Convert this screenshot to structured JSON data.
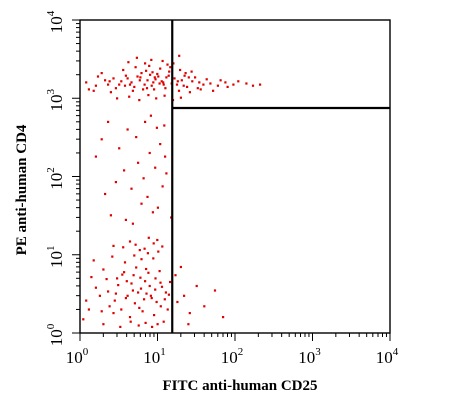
{
  "chart_data": {
    "type": "scatter",
    "title": "",
    "xlabel": "FITC anti-human CD25",
    "ylabel": "PE anti-human CD4",
    "x_scale": "log",
    "y_scale": "log",
    "xlim": [
      1,
      10000
    ],
    "ylim": [
      1,
      10000
    ],
    "x_ticks": [
      {
        "value": 1,
        "base": "10",
        "exp": "0"
      },
      {
        "value": 10,
        "base": "10",
        "exp": "1"
      },
      {
        "value": 100,
        "base": "10",
        "exp": "2"
      },
      {
        "value": 1000,
        "base": "10",
        "exp": "3"
      },
      {
        "value": 10000,
        "base": "10",
        "exp": "4"
      }
    ],
    "y_ticks": [
      {
        "value": 1,
        "base": "10",
        "exp": "0"
      },
      {
        "value": 10,
        "base": "10",
        "exp": "1"
      },
      {
        "value": 100,
        "base": "10",
        "exp": "2"
      },
      {
        "value": 1000,
        "base": "10",
        "exp": "3"
      },
      {
        "value": 10000,
        "base": "10",
        "exp": "4"
      }
    ],
    "quadrant_gates": {
      "x": 15.5,
      "y": 750
    },
    "point_color": "#e00000",
    "grid": false,
    "legend": "none",
    "series": [
      {
        "points": [
          [
            3.2,
            1500
          ],
          [
            4.1,
            1800
          ],
          [
            5.0,
            1400
          ],
          [
            6.2,
            2100
          ],
          [
            7.4,
            1700
          ],
          [
            8.8,
            1600
          ],
          [
            10.2,
            1900
          ],
          [
            12.0,
            1500
          ],
          [
            14.1,
            2200
          ],
          [
            16.5,
            1800
          ],
          [
            2.5,
            1200
          ],
          [
            3.6,
            2300
          ],
          [
            4.6,
            1600
          ],
          [
            5.5,
            1900
          ],
          [
            6.8,
            1500
          ],
          [
            8.0,
            2000
          ],
          [
            9.4,
            1750
          ],
          [
            11.3,
            1650
          ],
          [
            13.0,
            1850
          ],
          [
            15.2,
            1550
          ],
          [
            2.1,
            1700
          ],
          [
            2.9,
            1350
          ],
          [
            3.9,
            1950
          ],
          [
            4.8,
            1250
          ],
          [
            5.9,
            1700
          ],
          [
            7.1,
            2250
          ],
          [
            8.4,
            1450
          ],
          [
            9.9,
            2050
          ],
          [
            11.8,
            1600
          ],
          [
            13.9,
            1950
          ],
          [
            17.8,
            1500
          ],
          [
            20.5,
            1700
          ],
          [
            24.0,
            1400
          ],
          [
            28.0,
            1650
          ],
          [
            33.0,
            1350
          ],
          [
            39.0,
            1500
          ],
          [
            48.0,
            1550
          ],
          [
            60.0,
            1450
          ],
          [
            75.0,
            1600
          ],
          [
            95.0,
            1500
          ],
          [
            18.9,
            1250
          ],
          [
            22.3,
            1950
          ],
          [
            26.1,
            1200
          ],
          [
            30.5,
            1850
          ],
          [
            36.0,
            1300
          ],
          [
            43.0,
            1750
          ],
          [
            52.0,
            1250
          ],
          [
            65.0,
            1700
          ],
          [
            80.0,
            1400
          ],
          [
            110.0,
            1650
          ],
          [
            1.3,
            1300
          ],
          [
            1.7,
            1900
          ],
          [
            1.2,
            1600
          ],
          [
            1.5,
            1250
          ],
          [
            1.9,
            2100
          ],
          [
            2.3,
            1500
          ],
          [
            2.7,
            1800
          ],
          [
            3.4,
            1650
          ],
          [
            4.4,
            1500
          ],
          [
            5.2,
            2500
          ],
          [
            6.5,
            1300
          ],
          [
            7.8,
            2600
          ],
          [
            9.0,
            1300
          ],
          [
            10.8,
            2400
          ],
          [
            12.6,
            1350
          ],
          [
            14.6,
            2500
          ],
          [
            16.0,
            2800
          ],
          [
            19.5,
            2300
          ],
          [
            23.0,
            2100
          ],
          [
            27.5,
            2200
          ],
          [
            3.0,
            1000
          ],
          [
            4.3,
            1050
          ],
          [
            5.8,
            950
          ],
          [
            7.6,
            1100
          ],
          [
            9.6,
            1000
          ],
          [
            12.3,
            1080
          ],
          [
            15.8,
            950
          ],
          [
            20.0,
            1020
          ],
          [
            140.0,
            1550
          ],
          [
            210.0,
            1500
          ],
          [
            170.0,
            1450
          ],
          [
            8.3,
            3100
          ],
          [
            5.4,
            3300
          ],
          [
            11.6,
            3000
          ],
          [
            4.2,
            2900
          ],
          [
            6.9,
            2800
          ],
          [
            13.4,
            2700
          ],
          [
            19.0,
            3500
          ],
          [
            9.2,
            1850
          ],
          [
            10.6,
            1550
          ],
          [
            3.8,
            1450
          ],
          [
            2.4,
            1650
          ],
          [
            6.0,
            1850
          ],
          [
            7.3,
            1350
          ],
          [
            8.6,
            2150
          ],
          [
            1.6,
            1450
          ],
          [
            18.2,
            1650
          ],
          [
            21.7,
            1450
          ],
          [
            25.3,
            1850
          ],
          [
            34.5,
            1600
          ],
          [
            1.8,
            3.0
          ],
          [
            2.4,
            2.2
          ],
          [
            3.1,
            4.1
          ],
          [
            3.9,
            2.8
          ],
          [
            4.8,
            3.5
          ],
          [
            5.8,
            2.1
          ],
          [
            6.9,
            4.6
          ],
          [
            8.2,
            3.0
          ],
          [
            9.7,
            2.5
          ],
          [
            11.4,
            3.9
          ],
          [
            1.4,
            5.2
          ],
          [
            2.0,
            6.5
          ],
          [
            2.7,
            1.8
          ],
          [
            3.5,
            5.6
          ],
          [
            4.4,
            1.6
          ],
          [
            5.3,
            6.9
          ],
          [
            6.4,
            1.9
          ],
          [
            7.6,
            5.9
          ],
          [
            9.0,
            1.7
          ],
          [
            10.6,
            6.2
          ],
          [
            1.2,
            2.6
          ],
          [
            1.6,
            3.8
          ],
          [
            2.2,
            4.9
          ],
          [
            2.9,
            3.2
          ],
          [
            3.7,
            6.0
          ],
          [
            4.6,
            4.3
          ],
          [
            5.6,
            3.3
          ],
          [
            6.7,
            2.7
          ],
          [
            7.9,
            4.0
          ],
          [
            9.4,
            5.0
          ],
          [
            11.0,
            2.2
          ],
          [
            12.8,
            3.3
          ],
          [
            14.5,
            4.5
          ],
          [
            13.5,
            2.0
          ],
          [
            1.5,
            8.5
          ],
          [
            2.6,
            9.5
          ],
          [
            3.8,
            8.0
          ],
          [
            5.0,
            9.8
          ],
          [
            6.2,
            8.8
          ],
          [
            7.5,
            10.5
          ],
          [
            8.8,
            9.0
          ],
          [
            10.2,
            11.0
          ],
          [
            2.0,
            1.3
          ],
          [
            3.3,
            1.2
          ],
          [
            4.5,
            1.4
          ],
          [
            5.7,
            1.25
          ],
          [
            7.0,
            1.35
          ],
          [
            8.5,
            1.2
          ],
          [
            10.0,
            1.3
          ],
          [
            12.0,
            1.4
          ],
          [
            1.1,
            1.5
          ],
          [
            1.3,
            2.0
          ],
          [
            1.9,
            1.9
          ],
          [
            2.8,
            2.6
          ],
          [
            3.4,
            2.0
          ],
          [
            4.1,
            3.0
          ],
          [
            5.1,
            2.4
          ],
          [
            6.1,
            3.7
          ],
          [
            7.2,
            3.2
          ],
          [
            8.4,
            2.8
          ],
          [
            9.3,
            3.6
          ],
          [
            10.9,
            4.4
          ],
          [
            12.4,
            2.7
          ],
          [
            14.0,
            3.1
          ],
          [
            2.3,
            3.4
          ],
          [
            3.0,
            5.0
          ],
          [
            4.0,
            4.6
          ],
          [
            4.9,
            5.5
          ],
          [
            6.0,
            5.1
          ],
          [
            7.1,
            6.6
          ],
          [
            18.0,
            2.5
          ],
          [
            22.0,
            3.0
          ],
          [
            26.0,
            1.8
          ],
          [
            32.0,
            4.0
          ],
          [
            40.0,
            2.2
          ],
          [
            55.0,
            3.5
          ],
          [
            70.0,
            1.6
          ],
          [
            17.0,
            5.5
          ],
          [
            20.0,
            7.0
          ],
          [
            25.0,
            1.3
          ],
          [
            3.6,
            12.5
          ],
          [
            5.2,
            13.5
          ],
          [
            6.8,
            12.0
          ],
          [
            8.9,
            14.0
          ],
          [
            11.5,
            12.8
          ],
          [
            4.4,
            14.8
          ],
          [
            2.7,
            13.0
          ],
          [
            9.9,
            15.5
          ],
          [
            7.7,
            16.5
          ],
          [
            5.9,
            11.5
          ],
          [
            2.1,
            60.0
          ],
          [
            2.9,
            85.0
          ],
          [
            3.7,
            120.0
          ],
          [
            4.6,
            70.0
          ],
          [
            5.6,
            150.0
          ],
          [
            6.6,
            95.0
          ],
          [
            7.9,
            200.0
          ],
          [
            9.3,
            130.0
          ],
          [
            10.8,
            260.0
          ],
          [
            12.5,
            180.0
          ],
          [
            1.9,
            300.0
          ],
          [
            3.2,
            230.0
          ],
          [
            4.1,
            400.0
          ],
          [
            5.3,
            320.0
          ],
          [
            6.2,
            45.0
          ],
          [
            7.4,
            55.0
          ],
          [
            8.7,
            35.0
          ],
          [
            10.1,
            40.0
          ],
          [
            2.5,
            32.0
          ],
          [
            3.9,
            28.0
          ],
          [
            4.8,
            25.0
          ],
          [
            11.6,
            75.0
          ],
          [
            13.0,
            110.0
          ],
          [
            9.8,
            420.0
          ],
          [
            6.9,
            500.0
          ],
          [
            1.6,
            180.0
          ],
          [
            2.3,
            500.0
          ],
          [
            8.2,
            600.0
          ],
          [
            12.2,
            450.0
          ],
          [
            15.0,
            30.0
          ]
        ]
      }
    ]
  }
}
